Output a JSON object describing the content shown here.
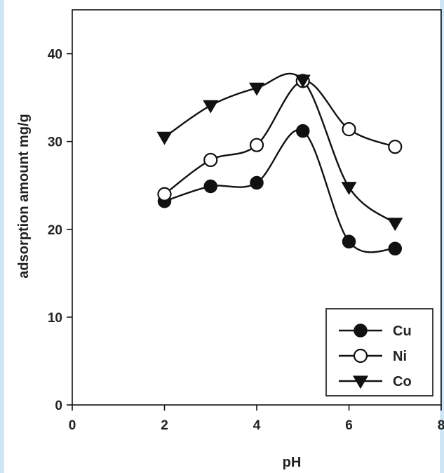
{
  "chart_data": {
    "type": "line",
    "title": "",
    "xlabel": "pH",
    "ylabel": "adsorption amount mg/g",
    "xlim": [
      0,
      8
    ],
    "ylim": [
      0,
      45
    ],
    "xticks": [
      0,
      2,
      4,
      6,
      8
    ],
    "yticks": [
      0,
      10,
      20,
      30,
      40
    ],
    "x": [
      2,
      3,
      4,
      5,
      6,
      7
    ],
    "series": [
      {
        "name": "Cu",
        "marker": "filled-circle",
        "values": [
          23.2,
          24.9,
          25.3,
          31.2,
          18.6,
          17.8
        ]
      },
      {
        "name": "Ni",
        "marker": "open-circle",
        "values": [
          24.0,
          27.9,
          29.6,
          36.9,
          31.4,
          29.4
        ]
      },
      {
        "name": "Co",
        "marker": "filled-triangle-down",
        "values": [
          30.5,
          34.1,
          36.1,
          37.0,
          24.8,
          20.7
        ]
      }
    ],
    "legend_position": "bottom-right",
    "grid": false,
    "colors": {
      "line": "#111111",
      "marker_fill": "#111111",
      "open_fill": "#ffffff"
    }
  }
}
